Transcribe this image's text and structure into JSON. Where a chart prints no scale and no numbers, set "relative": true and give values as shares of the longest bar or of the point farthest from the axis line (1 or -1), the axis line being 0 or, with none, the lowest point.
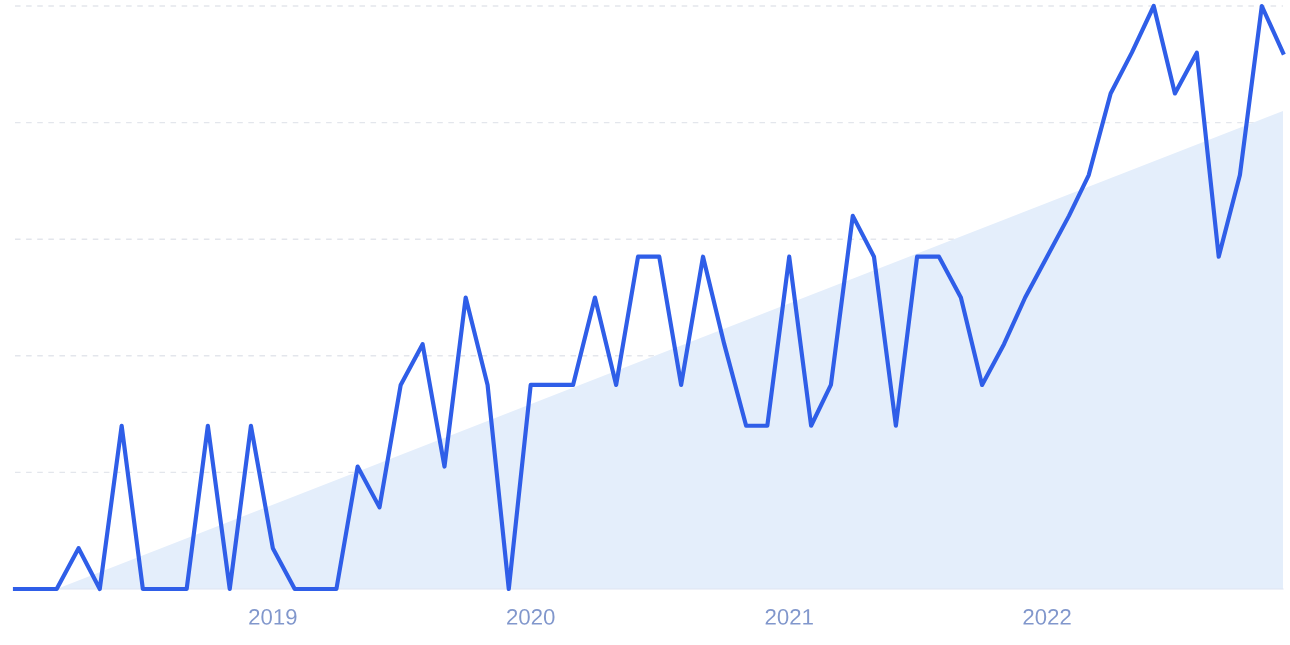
{
  "chart_data": {
    "type": "line",
    "relative": true,
    "grid": "y",
    "legend": false,
    "marker": "none",
    "line_style": "solid",
    "xlim": [
      "2018-01",
      "2022-12"
    ],
    "xticks": [
      {
        "value": "2019-01",
        "label": "2019"
      },
      {
        "value": "2020-01",
        "label": "2020"
      },
      {
        "value": "2021-01",
        "label": "2021"
      },
      {
        "value": "2022-01",
        "label": "2022"
      }
    ],
    "tick_labels": "x",
    "series": [
      {
        "type": "area",
        "color": "#e4eefb",
        "x": [
          "2018-03",
          "2022-12"
        ],
        "values": [
          0,
          0.82
        ]
      },
      {
        "color": "#2f5ee8",
        "x": [
          "2018-01",
          "2018-02",
          "2018-03",
          "2018-04",
          "2018-05",
          "2018-06",
          "2018-07",
          "2018-08",
          "2018-09",
          "2018-10",
          "2018-11",
          "2018-12",
          "2019-01",
          "2019-02",
          "2019-03",
          "2019-04",
          "2019-05",
          "2019-06",
          "2019-07",
          "2019-08",
          "2019-09",
          "2019-10",
          "2019-11",
          "2019-12",
          "2020-01",
          "2020-02",
          "2020-03",
          "2020-04",
          "2020-05",
          "2020-06",
          "2020-07",
          "2020-08",
          "2020-09",
          "2020-10",
          "2020-11",
          "2020-12",
          "2021-01",
          "2021-02",
          "2021-03",
          "2021-04",
          "2021-05",
          "2021-06",
          "2021-07",
          "2021-08",
          "2021-09",
          "2021-10",
          "2021-11",
          "2021-12",
          "2022-01",
          "2022-02",
          "2022-03",
          "2022-04",
          "2022-05",
          "2022-06",
          "2022-07",
          "2022-08",
          "2022-09",
          "2022-10",
          "2022-11",
          "2022-12"
        ],
        "values": [
          0,
          0,
          0,
          0.07,
          0,
          0.28,
          0,
          0,
          0,
          0.28,
          0,
          0.28,
          0.07,
          0,
          0,
          0,
          0.21,
          0.14,
          0.35,
          0.42,
          0.21,
          0.5,
          0.35,
          0,
          0.35,
          0.35,
          0.35,
          0.5,
          0.35,
          0.57,
          0.57,
          0.35,
          0.57,
          0.42,
          0.28,
          0.28,
          0.57,
          0.28,
          0.35,
          0.64,
          0.57,
          0.28,
          0.57,
          0.57,
          0.5,
          0.35,
          0.42,
          0.5,
          0.57,
          0.64,
          0.71,
          0.85,
          0.92,
          1,
          0.85,
          0.92,
          0.57,
          0.71,
          1,
          0.92
        ]
      }
    ]
  }
}
